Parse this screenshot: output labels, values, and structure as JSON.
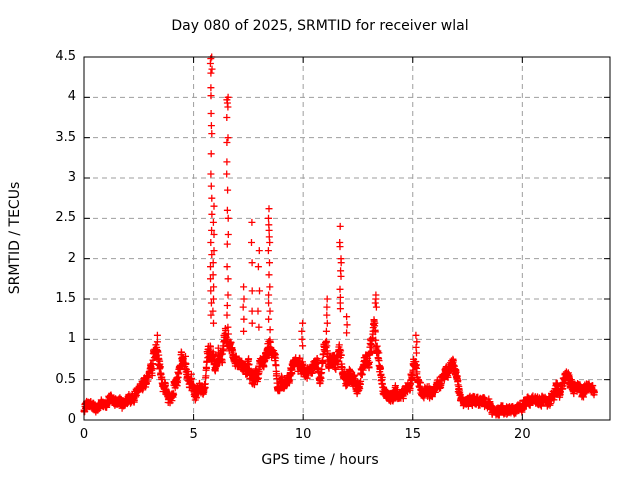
{
  "window": {
    "background": "#ffffff",
    "foreground": "#000000"
  },
  "chart_data": {
    "type": "scatter",
    "title": "Day 080 of 2025, SRMTID for receiver wlal",
    "xlabel": "GPS time / hours",
    "ylabel": "SRMTID / TECUs",
    "xlim": [
      0,
      24
    ],
    "ylim": [
      0,
      4.5
    ],
    "xticks": [
      [
        0,
        "0"
      ],
      [
        5,
        "5"
      ],
      [
        10,
        "10"
      ],
      [
        15,
        "15"
      ],
      [
        20,
        "20"
      ]
    ],
    "yticks": [
      [
        0,
        "0"
      ],
      [
        0.5,
        "0.5"
      ],
      [
        1,
        "1"
      ],
      [
        1.5,
        "1.5"
      ],
      [
        2,
        "2"
      ],
      [
        2.5,
        "2.5"
      ],
      [
        3,
        "3"
      ],
      [
        3.5,
        "3.5"
      ],
      [
        4,
        "4"
      ],
      [
        4.5,
        "4.5"
      ]
    ],
    "grid": "dashed",
    "grid_color": "#9e9e9e",
    "axis_color": "#000000",
    "legend_position": "none",
    "marker": {
      "shape": "plus",
      "size": 7,
      "stroke": 1.3,
      "color": "#ff0000"
    },
    "series_name": "SRMTID",
    "envelope_points": [
      [
        0.0,
        0.15,
        0.06
      ],
      [
        0.4,
        0.16,
        0.06
      ],
      [
        0.8,
        0.15,
        0.06
      ],
      [
        1.2,
        0.21,
        0.07
      ],
      [
        1.5,
        0.17,
        0.06
      ],
      [
        1.8,
        0.18,
        0.06
      ],
      [
        2.1,
        0.22,
        0.07
      ],
      [
        2.5,
        0.3,
        0.09
      ],
      [
        2.8,
        0.4,
        0.1
      ],
      [
        3.0,
        0.48,
        0.13
      ],
      [
        3.25,
        0.72,
        0.25
      ],
      [
        3.4,
        0.6,
        0.22
      ],
      [
        3.6,
        0.33,
        0.1
      ],
      [
        3.9,
        0.33,
        0.1
      ],
      [
        4.15,
        0.5,
        0.16
      ],
      [
        4.45,
        0.92,
        0.22
      ],
      [
        4.65,
        0.85,
        0.22
      ],
      [
        4.85,
        0.5,
        0.16
      ],
      [
        5.05,
        0.27,
        0.1
      ],
      [
        5.3,
        0.32,
        0.1
      ],
      [
        5.55,
        0.5,
        0.14
      ],
      [
        5.75,
        0.85,
        0.28
      ],
      [
        5.95,
        0.82,
        0.22
      ],
      [
        6.2,
        0.8,
        0.2
      ],
      [
        6.5,
        0.92,
        0.22
      ],
      [
        6.75,
        0.7,
        0.2
      ],
      [
        7.0,
        0.58,
        0.17
      ],
      [
        7.3,
        0.5,
        0.16
      ],
      [
        7.6,
        0.62,
        0.18
      ],
      [
        7.9,
        0.62,
        0.18
      ],
      [
        8.2,
        0.56,
        0.15
      ],
      [
        8.45,
        0.78,
        0.22
      ],
      [
        8.7,
        0.62,
        0.18
      ],
      [
        9.0,
        0.46,
        0.14
      ],
      [
        9.3,
        0.4,
        0.12
      ],
      [
        9.55,
        0.66,
        0.14
      ],
      [
        9.85,
        0.58,
        0.16
      ],
      [
        10.15,
        0.46,
        0.14
      ],
      [
        10.45,
        0.54,
        0.14
      ],
      [
        10.7,
        0.62,
        0.16
      ],
      [
        10.95,
        0.72,
        0.18
      ],
      [
        11.25,
        0.82,
        0.2
      ],
      [
        11.5,
        0.68,
        0.18
      ],
      [
        11.7,
        0.95,
        0.28
      ],
      [
        11.95,
        0.62,
        0.18
      ],
      [
        12.2,
        0.5,
        0.14
      ],
      [
        12.5,
        0.46,
        0.13
      ],
      [
        12.75,
        0.55,
        0.14
      ],
      [
        13.0,
        0.8,
        0.2
      ],
      [
        13.25,
        1.25,
        0.28
      ],
      [
        13.45,
        0.7,
        0.25
      ],
      [
        13.7,
        0.42,
        0.12
      ],
      [
        14.0,
        0.38,
        0.11
      ],
      [
        14.3,
        0.32,
        0.1
      ],
      [
        14.6,
        0.34,
        0.1
      ],
      [
        14.9,
        0.45,
        0.12
      ],
      [
        15.1,
        0.68,
        0.18
      ],
      [
        15.3,
        0.5,
        0.14
      ],
      [
        15.6,
        0.35,
        0.1
      ],
      [
        15.9,
        0.32,
        0.1
      ],
      [
        16.2,
        0.4,
        0.11
      ],
      [
        16.55,
        0.55,
        0.13
      ],
      [
        16.85,
        0.6,
        0.13
      ],
      [
        17.1,
        0.35,
        0.11
      ],
      [
        17.4,
        0.22,
        0.08
      ],
      [
        17.7,
        0.18,
        0.07
      ],
      [
        18.0,
        0.3,
        0.09
      ],
      [
        18.2,
        0.32,
        0.09
      ],
      [
        18.5,
        0.2,
        0.08
      ],
      [
        18.8,
        0.16,
        0.07
      ],
      [
        19.1,
        0.12,
        0.06
      ],
      [
        19.45,
        0.09,
        0.05
      ],
      [
        19.8,
        0.11,
        0.06
      ],
      [
        20.1,
        0.15,
        0.07
      ],
      [
        20.4,
        0.21,
        0.08
      ],
      [
        20.7,
        0.18,
        0.07
      ],
      [
        21.0,
        0.21,
        0.08
      ],
      [
        21.35,
        0.28,
        0.09
      ],
      [
        21.7,
        0.42,
        0.1
      ],
      [
        21.95,
        0.5,
        0.1
      ],
      [
        22.2,
        0.42,
        0.1
      ],
      [
        22.5,
        0.33,
        0.09
      ],
      [
        22.8,
        0.3,
        0.09
      ],
      [
        23.0,
        0.34,
        0.09
      ],
      [
        23.25,
        0.3,
        0.08
      ]
    ],
    "spike_columns": [
      {
        "t": 3.32,
        "values": [
          1.05,
          0.97,
          0.9
        ]
      },
      {
        "t": 5.8,
        "values": [
          4.5,
          4.48,
          4.42,
          4.35,
          4.3,
          4.12,
          4.02,
          3.8,
          3.65,
          3.55,
          3.3,
          3.05,
          2.9,
          2.75,
          2.55,
          2.35,
          2.2,
          2.05,
          1.9,
          1.75,
          1.6,
          1.45,
          1.3
        ]
      },
      {
        "t": 5.9,
        "values": [
          2.65,
          2.45,
          2.3,
          2.1,
          1.95,
          1.8,
          1.65,
          1.5,
          1.35,
          1.2
        ]
      },
      {
        "t": 6.55,
        "values": [
          4.0,
          3.97,
          3.93,
          3.88,
          3.75,
          3.5,
          3.44,
          3.2,
          3.05,
          2.85,
          2.6,
          2.5,
          2.3,
          2.18,
          1.9,
          1.75,
          1.55,
          1.42,
          1.3,
          1.15
        ]
      },
      {
        "t": 7.3,
        "values": [
          1.65,
          1.5,
          1.4,
          1.25,
          1.1
        ]
      },
      {
        "t": 7.68,
        "values": [
          2.45,
          2.2,
          1.95,
          1.6,
          1.35,
          1.2
        ]
      },
      {
        "t": 7.97,
        "values": [
          2.1,
          1.9,
          1.6,
          1.35,
          1.15
        ]
      },
      {
        "t": 8.45,
        "values": [
          2.62,
          2.5,
          2.42,
          2.35,
          2.27,
          2.2,
          2.1,
          1.95,
          1.8,
          1.65,
          1.55,
          1.45,
          1.35,
          1.25,
          1.12
        ]
      },
      {
        "t": 9.95,
        "values": [
          1.2,
          1.1,
          1.0,
          0.92
        ]
      },
      {
        "t": 11.1,
        "values": [
          1.5,
          1.4,
          1.3,
          1.2,
          1.1
        ]
      },
      {
        "t": 11.7,
        "values": [
          2.4,
          2.2,
          2.15,
          2.0,
          1.95,
          1.85,
          1.78,
          1.62,
          1.52,
          1.45,
          1.38
        ]
      },
      {
        "t": 12.0,
        "values": [
          1.28,
          1.18,
          1.08
        ]
      },
      {
        "t": 13.3,
        "values": [
          1.55,
          1.5,
          1.45,
          1.4
        ]
      },
      {
        "t": 15.15,
        "values": [
          1.05,
          0.97,
          0.9,
          0.83
        ]
      }
    ],
    "sampling": {
      "t_start": 0,
      "t_end": 23.3,
      "dt": 0.01,
      "seed": 42,
      "walk_step": 0.7,
      "jitter": 0.08,
      "value_min": 0.02
    }
  }
}
